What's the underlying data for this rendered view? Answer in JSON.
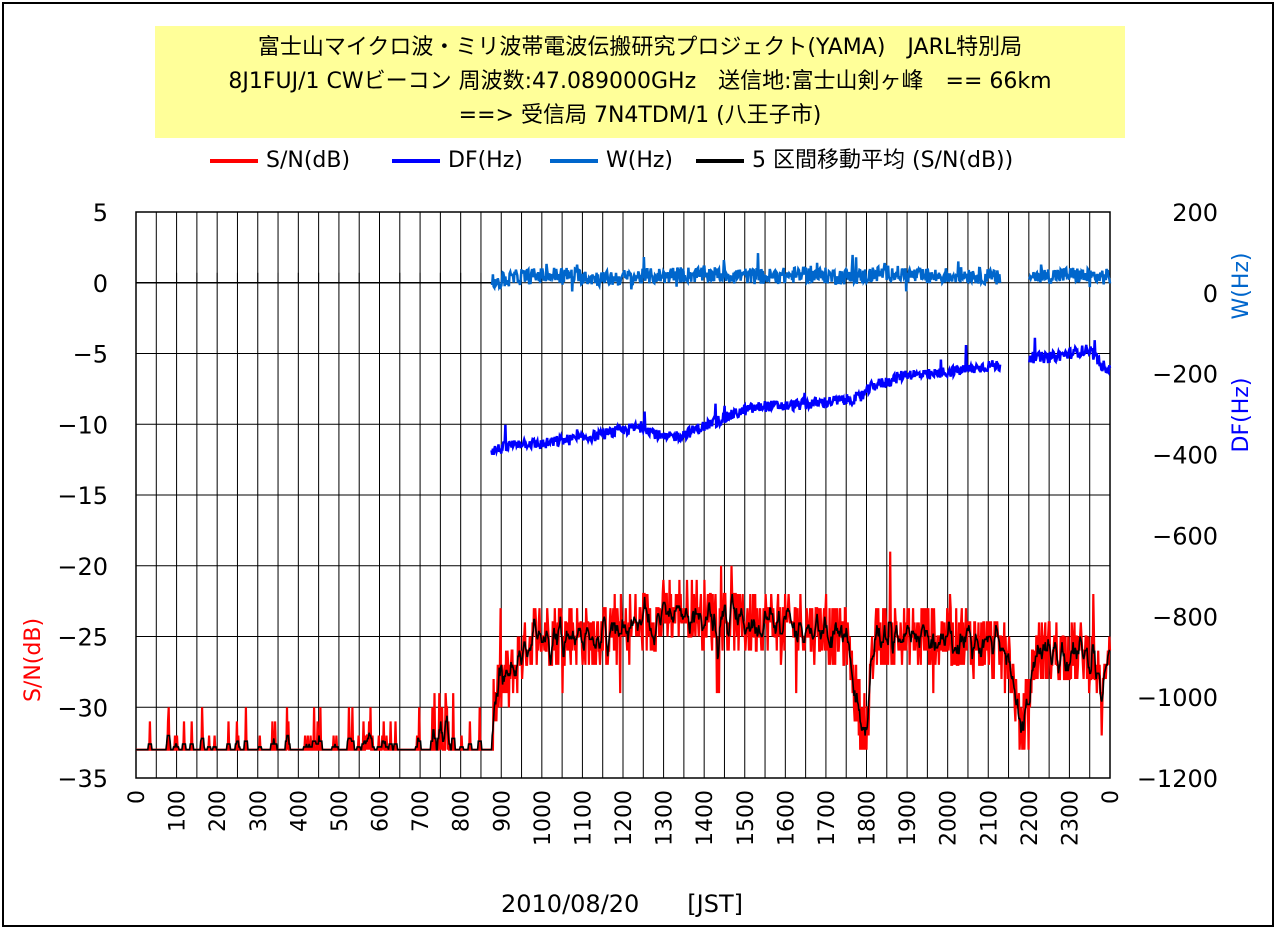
{
  "title": {
    "line1": "富士山マイクロ波・ミリ波帯電波伝搬研究プロジェクト(YAMA)　JARL特別局",
    "line2": "8J1FUJ/1 CWビーコン 周波数:47.089000GHz　送信地:富士山剣ヶ峰　== 66km",
    "line3": "==> 受信局 7N4TDM/1 (八王子市)"
  },
  "legend": [
    {
      "label": "S/N(dB)",
      "color": "#ff0000"
    },
    {
      "label": "DF(Hz)",
      "color": "#0000ff"
    },
    {
      "label": "W(Hz)",
      "color": "#0066cc"
    },
    {
      "label": "5 区間移動平均 (S/N(dB))",
      "color": "#000000"
    }
  ],
  "chart_data": {
    "type": "line",
    "xlabel": "2010/08/20　　[JST]",
    "x_tick_labels": [
      "0",
      "100",
      "200",
      "300",
      "400",
      "500",
      "600",
      "700",
      "800",
      "900",
      "1000",
      "1100",
      "1200",
      "1300",
      "1400",
      "1500",
      "1600",
      "1700",
      "1800",
      "1900",
      "2000",
      "2100",
      "2200",
      "2300",
      "0"
    ],
    "x_range_hours": [
      0,
      24
    ],
    "y_left": {
      "label": "S/N(dB)",
      "range": [
        -35,
        5
      ],
      "ticks": [
        "5",
        "0",
        "−5",
        "−10",
        "−15",
        "−20",
        "−25",
        "−30",
        "−35"
      ],
      "color": "#ff0000"
    },
    "y_right": {
      "labels": [
        "W(Hz)",
        "DF(Hz)"
      ],
      "label_colors": [
        "#0066cc",
        "#0000ff"
      ],
      "range": [
        -1200,
        200
      ],
      "ticks": [
        "200",
        "0",
        "−200",
        "−400",
        "−600",
        "−800",
        "−1000",
        "−1200"
      ]
    },
    "grid": true,
    "series": [
      {
        "name": "S/N(dB)",
        "axis": "left",
        "color": "#ff0000",
        "style": "noisy",
        "x": [
          0,
          1,
          2,
          3,
          4,
          5,
          6,
          7,
          8,
          8.6,
          8.9,
          9.2,
          9.5,
          9.8,
          10.5,
          11,
          12,
          13,
          13.5,
          14,
          15,
          16,
          17,
          17.5,
          17.8,
          18.0,
          18.2,
          18.5,
          19,
          20,
          21,
          21.5,
          21.8,
          22.2,
          23,
          23.6,
          23.8,
          24
        ],
        "values": [
          -33,
          -33,
          -32.5,
          -33,
          -33,
          -33,
          -33,
          -32.5,
          -32.5,
          -33,
          -29,
          -28,
          -26,
          -25,
          -24.5,
          -25,
          -24.5,
          -23.5,
          -23,
          -23.5,
          -24,
          -24,
          -24.5,
          -25,
          -30,
          -32,
          -25.5,
          -25,
          -25,
          -25,
          -25.5,
          -26,
          -32,
          -26,
          -26,
          -26.5,
          -30,
          -24
        ]
      },
      {
        "name": "5 区間移動平均 (S/N(dB))",
        "axis": "left",
        "color": "#000000",
        "style": "smooth",
        "x": [
          0,
          1,
          2,
          3,
          4,
          5,
          6,
          7,
          8,
          8.6,
          8.9,
          9.2,
          9.5,
          9.8,
          10.5,
          11,
          12,
          13,
          13.5,
          14,
          15,
          16,
          17,
          17.5,
          17.8,
          18.0,
          18.2,
          18.5,
          19,
          20,
          21,
          21.5,
          21.8,
          22.2,
          23,
          23.6,
          23.8,
          24
        ],
        "values": [
          -33,
          -33,
          -32.5,
          -33,
          -33,
          -33,
          -33,
          -32.5,
          -32.5,
          -33,
          -29,
          -28,
          -26,
          -25,
          -24.5,
          -25,
          -24.5,
          -23.5,
          -23,
          -23.5,
          -24,
          -24,
          -24.5,
          -25,
          -30,
          -32,
          -25.5,
          -25,
          -25,
          -25,
          -25.5,
          -26,
          -32,
          -26,
          -26,
          -26.5,
          -30,
          -24
        ]
      },
      {
        "name": "DF(Hz)",
        "axis": "right",
        "color": "#0000ff",
        "style": "noisy",
        "x": [
          8.75,
          9.0,
          9.5,
          10.0,
          10.5,
          11.0,
          11.5,
          12.0,
          12.5,
          13.0,
          13.5,
          14.0,
          14.5,
          15.0,
          15.5,
          16.0,
          16.5,
          17.0,
          17.5,
          17.85,
          18.15,
          18.5,
          19.0,
          19.5,
          20.0,
          20.5,
          21.0,
          21.3,
          21.7,
          22.0,
          22.5,
          23.0,
          23.5,
          23.8,
          24.0
        ],
        "values": [
          -390,
          -385,
          -370,
          -375,
          -365,
          -360,
          -350,
          -340,
          -330,
          -360,
          -350,
          -330,
          -310,
          -290,
          -280,
          -280,
          -275,
          -270,
          -265,
          -260,
          -230,
          -220,
          -200,
          -205,
          -195,
          -190,
          -180,
          -180,
          null,
          -160,
          -160,
          -150,
          -140,
          -180,
          -185
        ]
      },
      {
        "name": "W(Hz)",
        "axis": "right",
        "color": "#0066cc",
        "style": "noisy",
        "x": [
          8.75,
          9.5,
          10.5,
          11.5,
          12.5,
          13.5,
          14.5,
          15.5,
          16.5,
          17.5,
          17.85,
          18.5,
          19.5,
          20.5,
          21.0,
          21.3,
          21.7,
          22.0,
          23.0,
          23.5,
          24.0
        ],
        "values": [
          25,
          40,
          45,
          35,
          40,
          45,
          45,
          40,
          45,
          40,
          40,
          50,
          40,
          45,
          40,
          35,
          null,
          40,
          45,
          40,
          40
        ]
      }
    ]
  }
}
